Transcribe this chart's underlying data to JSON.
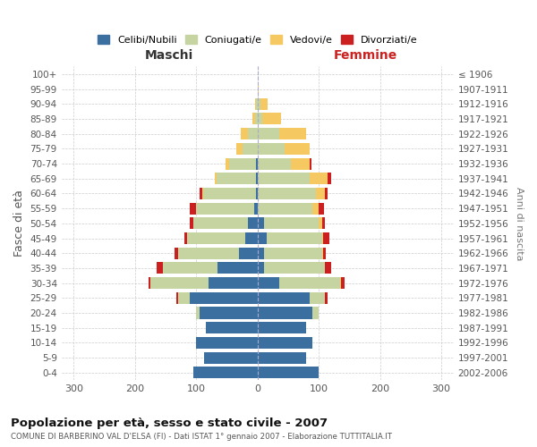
{
  "age_groups": [
    "0-4",
    "5-9",
    "10-14",
    "15-19",
    "20-24",
    "25-29",
    "30-34",
    "35-39",
    "40-44",
    "45-49",
    "50-54",
    "55-59",
    "60-64",
    "65-69",
    "70-74",
    "75-79",
    "80-84",
    "85-89",
    "90-94",
    "95-99",
    "100+"
  ],
  "birth_years": [
    "2002-2006",
    "1997-2001",
    "1992-1996",
    "1987-1991",
    "1982-1986",
    "1977-1981",
    "1972-1976",
    "1967-1971",
    "1962-1966",
    "1957-1961",
    "1952-1956",
    "1947-1951",
    "1942-1946",
    "1937-1941",
    "1932-1936",
    "1927-1931",
    "1922-1926",
    "1917-1921",
    "1912-1916",
    "1907-1911",
    "≤ 1906"
  ],
  "maschi": {
    "celibi": [
      105,
      87,
      100,
      85,
      95,
      110,
      80,
      65,
      30,
      20,
      15,
      5,
      3,
      2,
      2,
      0,
      0,
      0,
      0,
      0,
      0
    ],
    "coniugati": [
      0,
      0,
      0,
      0,
      5,
      20,
      95,
      90,
      100,
      95,
      90,
      95,
      85,
      65,
      45,
      25,
      15,
      4,
      2,
      0,
      0
    ],
    "vedovi": [
      0,
      0,
      0,
      0,
      0,
      0,
      0,
      0,
      0,
      0,
      0,
      0,
      2,
      2,
      5,
      10,
      12,
      5,
      2,
      0,
      0
    ],
    "divorziati": [
      0,
      0,
      0,
      0,
      0,
      2,
      3,
      10,
      5,
      5,
      5,
      10,
      5,
      0,
      0,
      0,
      0,
      0,
      0,
      0,
      0
    ]
  },
  "femmine": {
    "nubili": [
      100,
      80,
      90,
      80,
      90,
      85,
      35,
      10,
      10,
      15,
      10,
      0,
      0,
      0,
      0,
      0,
      0,
      0,
      0,
      0,
      0
    ],
    "coniugate": [
      0,
      0,
      0,
      0,
      10,
      25,
      100,
      100,
      95,
      90,
      90,
      90,
      95,
      85,
      55,
      45,
      35,
      8,
      5,
      0,
      0
    ],
    "vedove": [
      0,
      0,
      0,
      0,
      0,
      0,
      2,
      0,
      2,
      2,
      5,
      10,
      15,
      30,
      30,
      40,
      45,
      30,
      12,
      2,
      0
    ],
    "divorziate": [
      0,
      0,
      0,
      0,
      0,
      5,
      5,
      10,
      5,
      10,
      5,
      8,
      5,
      5,
      3,
      0,
      0,
      0,
      0,
      0,
      0
    ]
  },
  "colors": {
    "celibi": "#3b6fa0",
    "coniugati": "#c5d4a0",
    "vedovi": "#f5c862",
    "divorziati": "#cc2020"
  },
  "xlim": 320,
  "title": "Popolazione per età, sesso e stato civile - 2007",
  "subtitle": "COMUNE DI BARBERINO VAL D'ELSA (FI) - Dati ISTAT 1° gennaio 2007 - Elaborazione TUTTITALIA.IT",
  "ylabel": "Fasce di età",
  "ylabel_right": "Anni di nascita",
  "legend_labels": [
    "Celibi/Nubili",
    "Coniugati/e",
    "Vedovi/e",
    "Divorziati/e"
  ],
  "maschi_label": "Maschi",
  "femmine_label": "Femmine"
}
